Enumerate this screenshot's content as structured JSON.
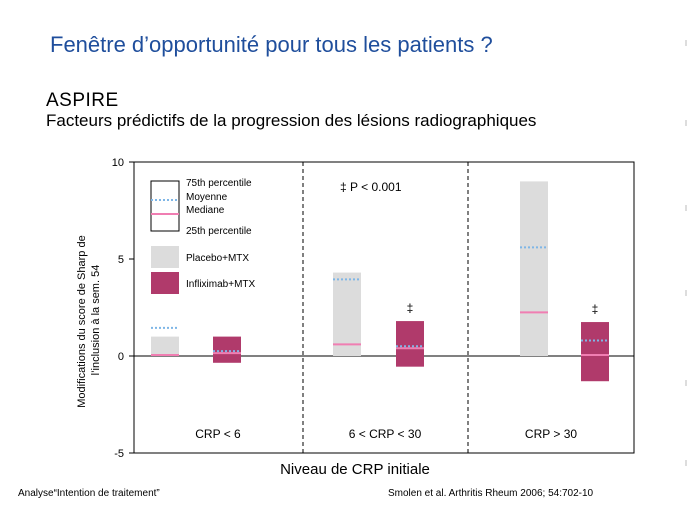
{
  "slide": {
    "title": "Fenêtre d’opportunité pour tous les patients ?",
    "heading": "ASPIRE",
    "subtitle": "Facteurs prédictifs de la progression des lésions radiographiques",
    "footer_left": "Analyse“Intention de traitement”",
    "footer_right": "Smolen et al. Arthritis Rheum 2006; 54:702-10"
  },
  "colors": {
    "placebo": "#dcdcdc",
    "infliximab": "#b03a6b",
    "mean_line": "#7fb6e6",
    "median_line": "#f07eb2"
  },
  "chart_data": {
    "type": "range_bar",
    "ylabel": "Modifications du score de Sharp de l’inclusion à la sem. 54",
    "xlabel": "Niveau de CRP initiale",
    "ylim": [
      -5,
      10
    ],
    "yticks": [
      "10",
      "5",
      "0",
      "-5"
    ],
    "annotation": "‡  P < 0.001",
    "legend": {
      "p75": "75th percentile",
      "mean": "Moyenne",
      "median": "Mediane",
      "p25": "25th percentile",
      "placebo": "Placebo+MTX",
      "infliximab": "Infliximab+MTX"
    },
    "groups": [
      {
        "label": "CRP < 6",
        "placebo": {
          "p25": 0.0,
          "p75": 1.0,
          "median": 0.05,
          "mean": 1.45
        },
        "infliximab": {
          "p25": -0.35,
          "p75": 1.0,
          "median": 0.15,
          "mean": 0.25
        },
        "marker": ""
      },
      {
        "label": "6 < CRP < 30",
        "placebo": {
          "p25": 0.0,
          "p75": 4.3,
          "median": 0.6,
          "mean": 3.95
        },
        "infliximab": {
          "p25": -0.55,
          "p75": 1.8,
          "median": 0.4,
          "mean": 0.5
        },
        "marker": "‡"
      },
      {
        "label": "CRP > 30",
        "placebo": {
          "p25": 0.0,
          "p75": 9.0,
          "median": 2.25,
          "mean": 5.6
        },
        "infliximab": {
          "p25": -1.3,
          "p75": 1.75,
          "median": 0.05,
          "mean": 0.8
        },
        "marker": "‡"
      }
    ]
  }
}
